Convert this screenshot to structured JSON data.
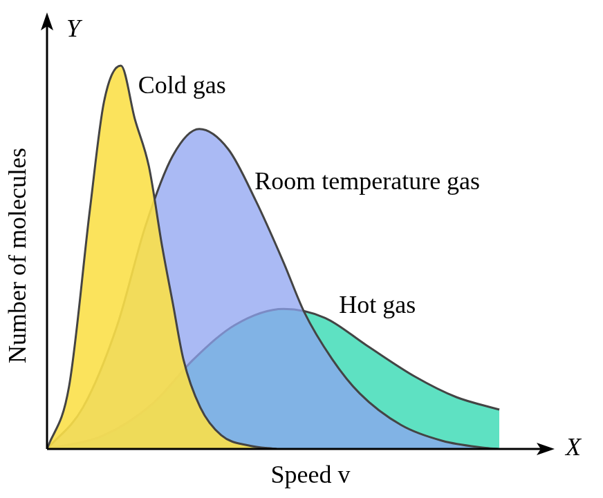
{
  "chart_data": {
    "type": "area",
    "x_label": "Speed v",
    "y_label": "Number of molecules",
    "axis_names": {
      "x": "X",
      "y": "Y"
    },
    "xlim": [
      0,
      10
    ],
    "ylim": [
      0,
      10
    ],
    "tick_labels": false,
    "grid": false,
    "series": [
      {
        "name": "Cold gas",
        "color": "#fbe04a",
        "x": [
          0,
          0.44,
          0.86,
          1.14,
          1.48,
          1.76,
          2.04,
          2.31,
          2.52,
          2.73,
          3.07,
          3.49,
          4.04,
          4.6
        ],
        "values": [
          0,
          1.45,
          5.6,
          8.1,
          8.95,
          7.7,
          6.6,
          4.7,
          3.4,
          2.1,
          0.97,
          0.32,
          0.08,
          0
        ]
      },
      {
        "name": "Room temperature gas",
        "color": "#8ea3f0",
        "x": [
          0,
          0.72,
          1.41,
          1.97,
          2.52,
          3.05,
          3.63,
          4.18,
          4.74,
          5.15,
          5.71,
          6.26,
          7.09,
          7.92,
          8.75,
          9.03
        ],
        "values": [
          0,
          0.97,
          2.9,
          5.2,
          6.85,
          7.47,
          7.0,
          5.8,
          4.35,
          3.2,
          2.1,
          1.3,
          0.56,
          0.19,
          0.03,
          0
        ]
      },
      {
        "name": "Hot gas",
        "color": "#36dab3",
        "x": [
          0,
          1.14,
          2.11,
          2.94,
          3.77,
          4.74,
          5.57,
          6.4,
          7.37,
          8.2,
          9.06
        ],
        "values": [
          0,
          0.32,
          1.05,
          2.1,
          2.9,
          3.27,
          3.06,
          2.42,
          1.69,
          1.21,
          0.92
        ]
      }
    ]
  }
}
